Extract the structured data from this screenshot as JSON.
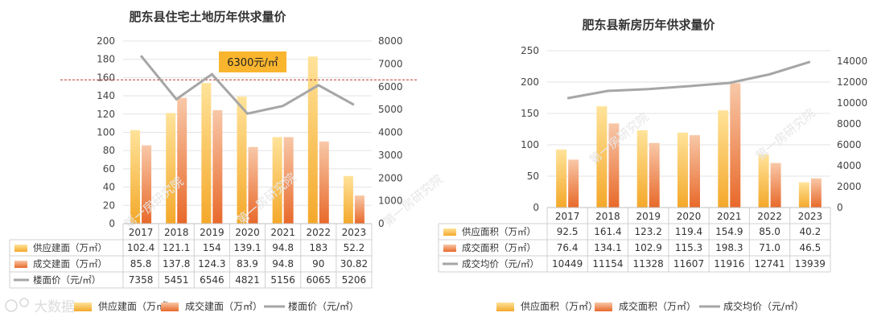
{
  "chart_data": [
    {
      "type": "bar",
      "title": "肥东县住宅土地历年供求量价",
      "categories": [
        "2017",
        "2018",
        "2019",
        "2020",
        "2021",
        "2022",
        "2023"
      ],
      "y_left": {
        "ylim": [
          0,
          200
        ],
        "ticks": [
          "0",
          "20",
          "40",
          "60",
          "80",
          "100",
          "120",
          "140",
          "160",
          "180",
          "200"
        ]
      },
      "y_right": {
        "ylim": [
          0,
          8000
        ],
        "ticks": [
          "0",
          "1000",
          "2000",
          "3000",
          "4000",
          "5000",
          "6000",
          "7000",
          "8000"
        ]
      },
      "series": [
        {
          "name": "供应建面（万㎡）",
          "kind": "bar",
          "axis": "left",
          "color": "#f6b233",
          "values": [
            102.4,
            121.1,
            154,
            139.1,
            94.8,
            183,
            52.2
          ],
          "display": [
            "102.4",
            "121.1",
            "154",
            "139.1",
            "94.8",
            "183",
            "52.2"
          ]
        },
        {
          "name": "成交建面（万㎡）",
          "kind": "bar",
          "axis": "left",
          "color": "#ec7a3a",
          "values": [
            85.8,
            137.8,
            124.3,
            83.9,
            94.8,
            90,
            30.82
          ],
          "display": [
            "85.8",
            "137.8",
            "124.3",
            "83.9",
            "94.8",
            "90",
            "30.82"
          ]
        },
        {
          "name": "楼面价（元/㎡）",
          "kind": "line",
          "axis": "right",
          "color": "#a6a6a6",
          "values": [
            7358,
            5451,
            6546,
            4821,
            5156,
            6065,
            5206
          ],
          "display": [
            "7358",
            "5451",
            "6546",
            "4821",
            "5156",
            "6065",
            "5206"
          ]
        }
      ],
      "reference_line": {
        "value": 6300,
        "label": "6300元/㎡",
        "color": "#c0392b"
      },
      "legend": [
        "供应建面（万㎡）",
        "成交建面（万㎡）",
        "楼面价（元/㎡）"
      ],
      "watermark": "第一房研究院"
    },
    {
      "type": "bar",
      "title": "肥东县新房历年供求量价",
      "categories": [
        "2017",
        "2018",
        "2019",
        "2020",
        "2021",
        "2022",
        "2023"
      ],
      "y_left": {
        "ylim": [
          0,
          250
        ],
        "ticks": [
          "0",
          "50",
          "100",
          "150",
          "200",
          "250"
        ]
      },
      "y_right": {
        "ylim": [
          0,
          15000
        ],
        "ticks": [
          "0",
          "2000",
          "4000",
          "6000",
          "8000",
          "10000",
          "12000",
          "14000"
        ]
      },
      "series": [
        {
          "name": "供应面积（万㎡）",
          "kind": "bar",
          "axis": "left",
          "color": "#f6b233",
          "values": [
            92.5,
            161.4,
            123.2,
            119.4,
            154.9,
            85.0,
            40.2
          ],
          "display": [
            "92.5",
            "161.4",
            "123.2",
            "119.4",
            "154.9",
            "85.0",
            "40.2"
          ]
        },
        {
          "name": "成交面积（万㎡）",
          "kind": "bar",
          "axis": "left",
          "color": "#ec7a3a",
          "values": [
            76.4,
            134.1,
            102.9,
            115.3,
            198.3,
            71.0,
            46.5
          ],
          "display": [
            "76.4",
            "134.1",
            "102.9",
            "115.3",
            "198.3",
            "71.0",
            "46.5"
          ]
        },
        {
          "name": "成交均价（元/㎡）",
          "kind": "line",
          "axis": "right",
          "color": "#a6a6a6",
          "values": [
            10449,
            11154,
            11328,
            11607,
            11916,
            12741,
            13939
          ],
          "display": [
            "10449",
            "11154",
            "11328",
            "11607",
            "11916",
            "12741",
            "13939"
          ]
        }
      ],
      "legend": [
        "供应面积（万㎡）",
        "成交面积（万㎡）",
        "成交均价（元/㎡）"
      ],
      "watermark": "第一房研究院"
    }
  ],
  "footer": {
    "brand_text": "大数据"
  }
}
